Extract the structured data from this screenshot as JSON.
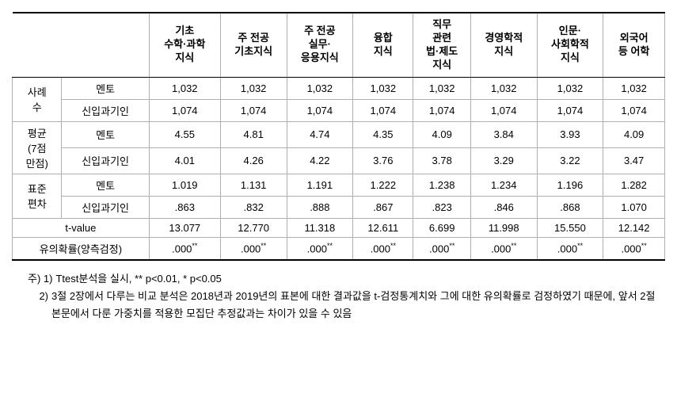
{
  "table": {
    "headers": [
      "",
      "",
      "기초\n수학·과학\n지식",
      "주 전공\n기초지식",
      "주 전공\n실무·\n응용지식",
      "융합\n지식",
      "직무\n관련\n법·제도\n지식",
      "경영학적\n지식",
      "인문·\n사회학적\n지식",
      "외국어\n등 어학"
    ],
    "rowGroups": [
      {
        "label": "사례\n수",
        "rows": [
          {
            "sub": "멘토",
            "cells": [
              "1,032",
              "1,032",
              "1,032",
              "1,032",
              "1,032",
              "1,032",
              "1,032",
              "1,032"
            ]
          },
          {
            "sub": "신입과기인",
            "cells": [
              "1,074",
              "1,074",
              "1,074",
              "1,074",
              "1,074",
              "1,074",
              "1,074",
              "1,074"
            ]
          }
        ]
      },
      {
        "label": "평균\n(7점\n만점)",
        "rows": [
          {
            "sub": "멘토",
            "cells": [
              "4.55",
              "4.81",
              "4.74",
              "4.35",
              "4.09",
              "3.84",
              "3.93",
              "4.09"
            ]
          },
          {
            "sub": "신입과기인",
            "cells": [
              "4.01",
              "4.26",
              "4.22",
              "3.76",
              "3.78",
              "3.29",
              "3.22",
              "3.47"
            ]
          }
        ]
      },
      {
        "label": "표준\n편차",
        "rows": [
          {
            "sub": "멘토",
            "cells": [
              "1.019",
              "1.131",
              "1.191",
              "1.222",
              "1.238",
              "1.234",
              "1.196",
              "1.282"
            ]
          },
          {
            "sub": "신입과기인",
            "cells": [
              ".863",
              ".832",
              ".888",
              ".867",
              ".823",
              ".846",
              ".868",
              "1.070"
            ]
          }
        ]
      }
    ],
    "singleRows": [
      {
        "label": "t-value",
        "cells": [
          "13.077",
          "12.770",
          "11.318",
          "12.611",
          "6.699",
          "11.998",
          "15.550",
          "12.142"
        ]
      },
      {
        "label": "유의확률(양측검정)",
        "cells": [
          ".000",
          ".000",
          ".000",
          ".000",
          ".000",
          ".000",
          ".000",
          ".000"
        ],
        "sup": "**"
      }
    ]
  },
  "notes": {
    "prefix": "주)",
    "items": [
      {
        "num": "1)",
        "text": "Ttest분석을 실시, ** p<0.01, * p<0.05"
      },
      {
        "num": "2)",
        "text": "3절 2장에서 다루는 비교 분석은 2018년과 2019년의 표본에 대한 결과값을 t-검정통계치와 그에 대한 유의확률로 검정하였기 때문에, 앞서 2절 본문에서 다룬 가중치를 적용한 모집단 추정값과는 차이가 있을 수 있음"
      }
    ]
  }
}
